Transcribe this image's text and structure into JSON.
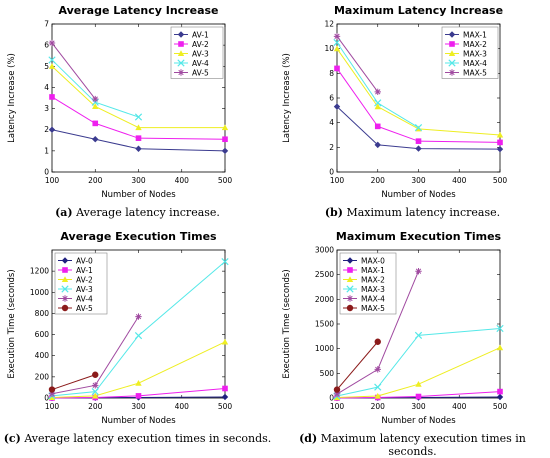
{
  "chart_data": [
    {
      "type": "line",
      "title": "Average Latency Increase",
      "xlabel": "Number of Nodes",
      "ylabel": "Latency Increase (%)",
      "xlim": [
        100,
        500
      ],
      "ylim": [
        0,
        7
      ],
      "xticks": [
        100,
        200,
        300,
        400,
        500
      ],
      "yticks": [
        0,
        1,
        2,
        3,
        4,
        5,
        6,
        7
      ],
      "legend_position": "top-right",
      "grid": false,
      "caption_label": "(a)",
      "caption_text": "Average latency increase.",
      "series": [
        {
          "name": "AV-1",
          "color": "#3b3b8f",
          "marker": "diamond",
          "x": [
            100,
            200,
            300,
            500
          ],
          "y": [
            2.0,
            1.55,
            1.1,
            1.0
          ]
        },
        {
          "name": "AV-2",
          "color": "#ee1fee",
          "marker": "square",
          "x": [
            100,
            200,
            300,
            500
          ],
          "y": [
            3.55,
            2.3,
            1.6,
            1.55
          ]
        },
        {
          "name": "AV-3",
          "color": "#eeee22",
          "marker": "triangle",
          "x": [
            100,
            200,
            300,
            500
          ],
          "y": [
            5.0,
            3.1,
            2.1,
            2.1
          ]
        },
        {
          "name": "AV-4",
          "color": "#55e8e8",
          "marker": "x",
          "x": [
            100,
            200,
            300
          ],
          "y": [
            5.3,
            3.3,
            2.6
          ]
        },
        {
          "name": "AV-5",
          "color": "#a04aa0",
          "marker": "star",
          "x": [
            100,
            200
          ],
          "y": [
            6.1,
            3.45
          ]
        }
      ]
    },
    {
      "type": "line",
      "title": "Maximum Latency Increase",
      "xlabel": "Number of Nodes",
      "ylabel": "Latency Increase (%)",
      "xlim": [
        100,
        500
      ],
      "ylim": [
        0,
        12
      ],
      "xticks": [
        100,
        200,
        300,
        400,
        500
      ],
      "yticks": [
        0,
        2,
        4,
        6,
        8,
        10,
        12
      ],
      "legend_position": "top-right",
      "grid": false,
      "caption_label": "(b)",
      "caption_text": "Maximum latency increase.",
      "series": [
        {
          "name": "MAX-1",
          "color": "#3b3b8f",
          "marker": "diamond",
          "x": [
            100,
            200,
            300,
            500
          ],
          "y": [
            5.3,
            2.2,
            1.9,
            1.85
          ]
        },
        {
          "name": "MAX-2",
          "color": "#ee1fee",
          "marker": "square",
          "x": [
            100,
            200,
            300,
            500
          ],
          "y": [
            8.4,
            3.7,
            2.5,
            2.4
          ]
        },
        {
          "name": "MAX-3",
          "color": "#eeee22",
          "marker": "triangle",
          "x": [
            100,
            200,
            300,
            500
          ],
          "y": [
            10.0,
            5.3,
            3.5,
            3.0
          ]
        },
        {
          "name": "MAX-4",
          "color": "#55e8e8",
          "marker": "x",
          "x": [
            100,
            200,
            300
          ],
          "y": [
            10.5,
            5.6,
            3.6
          ]
        },
        {
          "name": "MAX-5",
          "color": "#a04aa0",
          "marker": "star",
          "x": [
            100,
            200
          ],
          "y": [
            11.0,
            6.5
          ]
        }
      ]
    },
    {
      "type": "line",
      "title": "Average Execution Times",
      "xlabel": "Number of Nodes",
      "ylabel": "Execution Time (seconds)",
      "xlim": [
        100,
        500
      ],
      "ylim": [
        0,
        1400
      ],
      "xticks": [
        100,
        200,
        300,
        400,
        500
      ],
      "yticks": [
        0,
        200,
        400,
        600,
        800,
        1000,
        1200
      ],
      "legend_position": "top-left",
      "grid": false,
      "caption_label": "(c)",
      "caption_text": "Average latency execution times in seconds.",
      "series": [
        {
          "name": "AV-0",
          "color": "#202080",
          "marker": "diamond",
          "x": [
            100,
            200,
            300,
            500
          ],
          "y": [
            0,
            2,
            5,
            10
          ]
        },
        {
          "name": "AV-1",
          "color": "#ee1fee",
          "marker": "square",
          "x": [
            100,
            200,
            300,
            500
          ],
          "y": [
            0,
            5,
            20,
            90
          ]
        },
        {
          "name": "AV-2",
          "color": "#eeee22",
          "marker": "triangle",
          "x": [
            100,
            200,
            300,
            500
          ],
          "y": [
            5,
            20,
            140,
            530
          ]
        },
        {
          "name": "AV-3",
          "color": "#55e8e8",
          "marker": "x",
          "x": [
            100,
            200,
            300,
            500
          ],
          "y": [
            20,
            60,
            590,
            1290
          ]
        },
        {
          "name": "AV-4",
          "color": "#a04aa0",
          "marker": "star",
          "x": [
            100,
            200,
            300
          ],
          "y": [
            40,
            120,
            770
          ]
        },
        {
          "name": "AV-5",
          "color": "#8b1a1a",
          "marker": "circle",
          "x": [
            100,
            200
          ],
          "y": [
            80,
            220
          ]
        }
      ]
    },
    {
      "type": "line",
      "title": "Maximum Execution Times",
      "xlabel": "Number of Nodes",
      "ylabel": "Execution Time (seconds)",
      "xlim": [
        100,
        500
      ],
      "ylim": [
        0,
        3000
      ],
      "xticks": [
        100,
        200,
        300,
        400,
        500
      ],
      "yticks": [
        0,
        500,
        1000,
        1500,
        2000,
        2500,
        3000
      ],
      "legend_position": "top-left",
      "grid": false,
      "caption_label": "(d)",
      "caption_text": "Maximum latency execution times in seconds.",
      "series": [
        {
          "name": "MAX-0",
          "color": "#202080",
          "marker": "diamond",
          "x": [
            100,
            200,
            300,
            500
          ],
          "y": [
            0,
            5,
            10,
            20
          ]
        },
        {
          "name": "MAX-1",
          "color": "#ee1fee",
          "marker": "square",
          "x": [
            100,
            200,
            300,
            500
          ],
          "y": [
            0,
            10,
            30,
            130
          ]
        },
        {
          "name": "MAX-2",
          "color": "#eeee22",
          "marker": "triangle",
          "x": [
            100,
            200,
            300,
            500
          ],
          "y": [
            10,
            40,
            280,
            1020
          ]
        },
        {
          "name": "MAX-3",
          "color": "#55e8e8",
          "marker": "x",
          "x": [
            100,
            200,
            300,
            500
          ],
          "y": [
            40,
            220,
            1270,
            1410
          ]
        },
        {
          "name": "MAX-4",
          "color": "#a04aa0",
          "marker": "star",
          "x": [
            100,
            200,
            300
          ],
          "y": [
            80,
            580,
            2570
          ]
        },
        {
          "name": "MAX-5",
          "color": "#8b1a1a",
          "marker": "circle",
          "x": [
            100,
            200
          ],
          "y": [
            170,
            1140
          ]
        }
      ]
    }
  ]
}
